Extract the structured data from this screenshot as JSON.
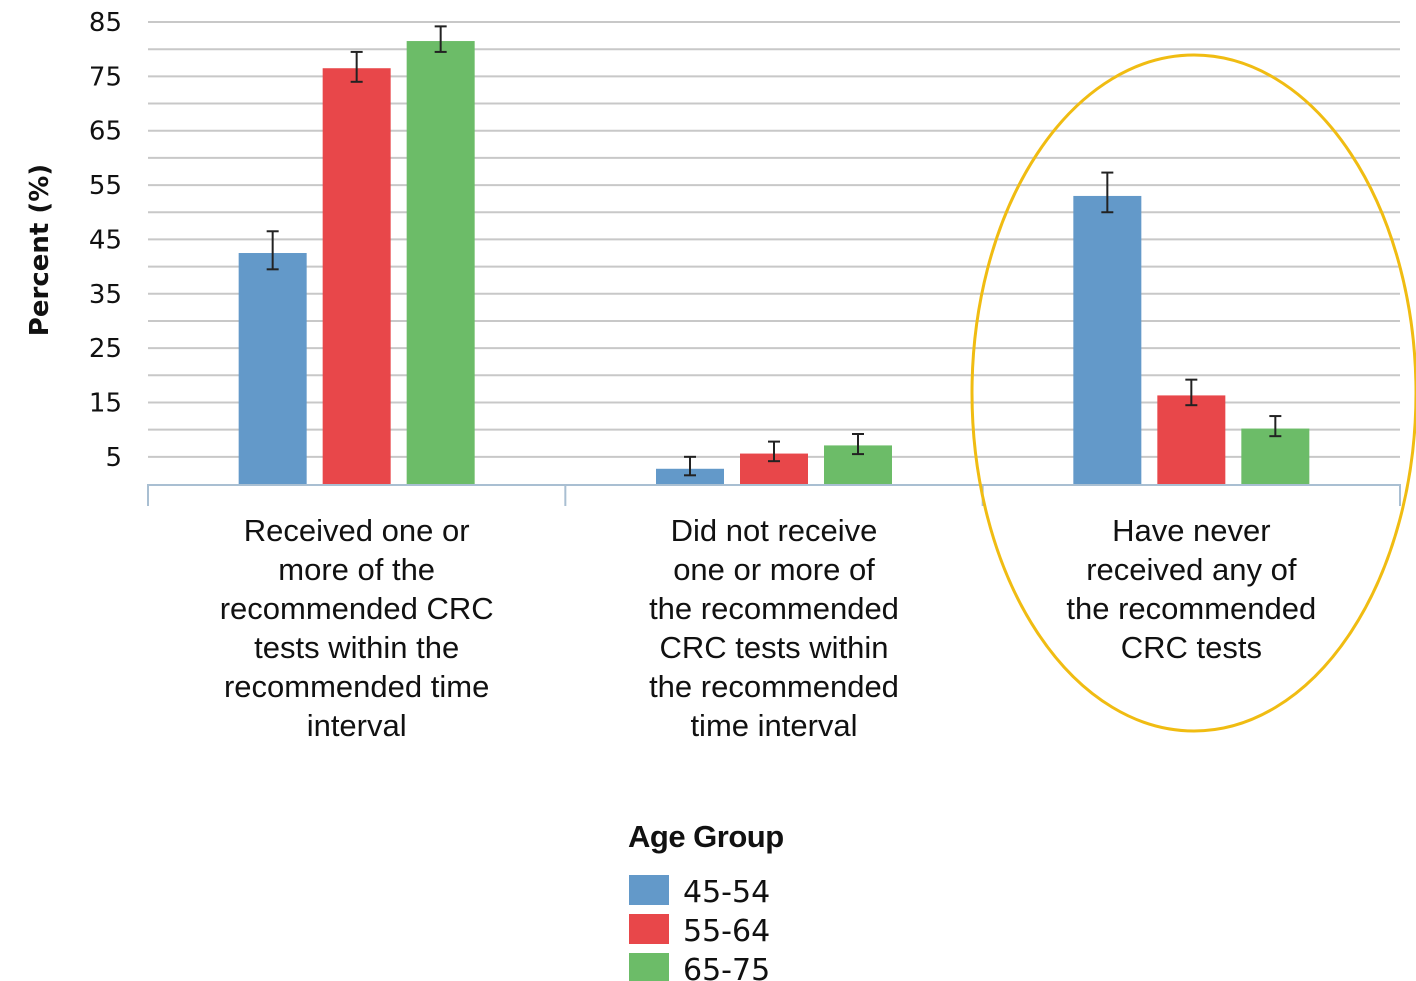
{
  "colors": {
    "series": [
      "#6399c9",
      "#e8474a",
      "#6cbc68"
    ],
    "grid": "#c8c8c8",
    "axis": "#a9bfd2",
    "highlight": "#f0bc12"
  },
  "chart_data": {
    "type": "bar",
    "ylabel": "Percent (%)",
    "yticks": [
      5,
      15,
      25,
      35,
      45,
      55,
      65,
      75,
      85
    ],
    "ylim": [
      0,
      85
    ],
    "grid": true,
    "categories": [
      "Received one or more of the recommended CRC tests within the recommended time interval",
      "Did not receive one or more of the recommended CRC tests within the recommended time interval",
      "Have never received any of the recommended CRC tests"
    ],
    "category_lines": [
      [
        "Received one or",
        "more of the",
        "recommended CRC",
        "tests within the",
        "recommended time",
        "interval"
      ],
      [
        "Did not receive",
        "one or more of",
        "the recommended",
        "CRC tests within",
        "the recommended",
        "time interval"
      ],
      [
        "Have never",
        "received any of",
        "the recommended",
        "CRC tests"
      ]
    ],
    "series": [
      {
        "name": "45-54",
        "values": [
          42.5,
          2.8,
          53
        ],
        "error_low": [
          39.5,
          1.6,
          50
        ],
        "error_high": [
          46.5,
          5,
          57.3
        ]
      },
      {
        "name": "55-64",
        "values": [
          76.5,
          5.6,
          16.3
        ],
        "error_low": [
          74,
          4.2,
          14.5
        ],
        "error_high": [
          79.5,
          7.8,
          19.2
        ]
      },
      {
        "name": "65-75",
        "values": [
          81.5,
          7.1,
          10.2
        ],
        "error_low": [
          79.5,
          5.5,
          8.8
        ],
        "error_high": [
          84.2,
          9.2,
          12.5
        ]
      }
    ],
    "legend": {
      "title": "Age Group",
      "position": "bottom-center"
    },
    "highlighted_category": 2
  }
}
